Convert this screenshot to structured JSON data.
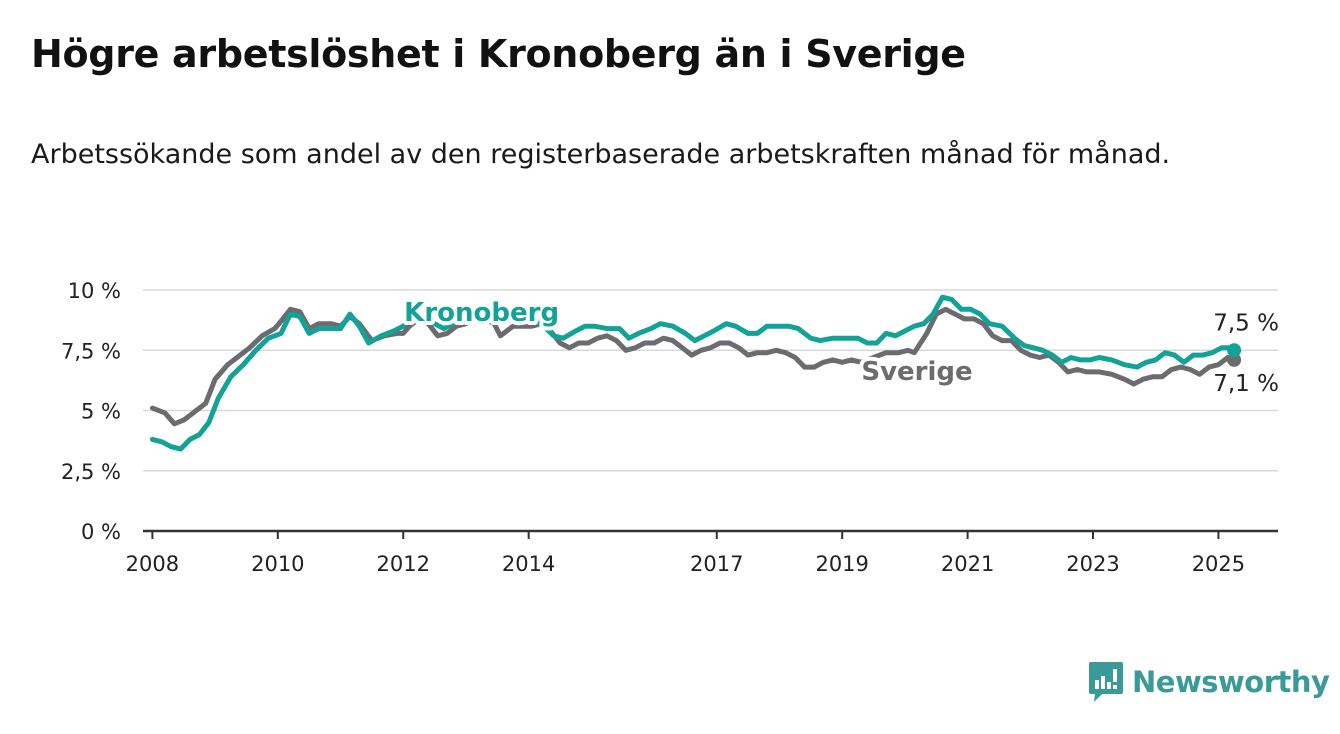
{
  "title": "Högre arbetslöshet i Kronoberg än i Sverige",
  "subtitle": "Arbetssökande som andel av den registerbaserade arbetskraften månad för månad.",
  "brand": {
    "name": "Newsworthy",
    "color": "#3a9a9a",
    "icon": "bar-chart-icon"
  },
  "chart_data": {
    "type": "line",
    "ylim": [
      0,
      10
    ],
    "yticks": [
      0,
      2.5,
      5,
      7.5,
      10
    ],
    "ytick_labels": [
      "0 %",
      "2,5 %",
      "5 %",
      "7,5 %",
      "10 %"
    ],
    "xlim": [
      2007.85,
      2025.95
    ],
    "xticks": [
      2008,
      2010,
      2012,
      2014,
      2017,
      2019,
      2021,
      2023,
      2025
    ],
    "xtick_labels": [
      "2008",
      "2010",
      "2012",
      "2014",
      "2017",
      "2019",
      "2021",
      "2023",
      "2025"
    ],
    "grid": true,
    "series": [
      {
        "name": "Sverige",
        "color": "#6b6b70",
        "end_label": "7,1 %",
        "points": [
          [
            2008.0,
            5.1
          ],
          [
            2008.2,
            4.9
          ],
          [
            2008.35,
            4.45
          ],
          [
            2008.5,
            4.6
          ],
          [
            2008.7,
            5.0
          ],
          [
            2008.85,
            5.3
          ],
          [
            2009.0,
            6.3
          ],
          [
            2009.2,
            6.9
          ],
          [
            2009.35,
            7.2
          ],
          [
            2009.55,
            7.6
          ],
          [
            2009.75,
            8.1
          ],
          [
            2009.95,
            8.4
          ],
          [
            2010.05,
            8.7
          ],
          [
            2010.2,
            9.2
          ],
          [
            2010.35,
            9.1
          ],
          [
            2010.5,
            8.4
          ],
          [
            2010.65,
            8.6
          ],
          [
            2010.85,
            8.6
          ],
          [
            2011.0,
            8.5
          ],
          [
            2011.15,
            8.9
          ],
          [
            2011.3,
            8.6
          ],
          [
            2011.5,
            7.9
          ],
          [
            2011.7,
            8.1
          ],
          [
            2011.9,
            8.2
          ],
          [
            2012.0,
            8.2
          ],
          [
            2012.1,
            8.5
          ],
          [
            2012.25,
            8.8
          ],
          [
            2012.4,
            8.6
          ],
          [
            2012.55,
            8.1
          ],
          [
            2012.7,
            8.2
          ],
          [
            2012.85,
            8.5
          ],
          [
            2013.0,
            8.6
          ],
          [
            2013.15,
            8.8
          ],
          [
            2013.3,
            8.8
          ],
          [
            2013.45,
            8.6
          ],
          [
            2013.55,
            8.1
          ],
          [
            2013.75,
            8.5
          ],
          [
            2013.95,
            8.5
          ],
          [
            2014.05,
            8.5
          ],
          [
            2014.2,
            8.6
          ],
          [
            2014.35,
            8.3
          ],
          [
            2014.5,
            7.8
          ],
          [
            2014.65,
            7.6
          ],
          [
            2014.8,
            7.8
          ],
          [
            2014.95,
            7.8
          ],
          [
            2015.1,
            8.0
          ],
          [
            2015.25,
            8.1
          ],
          [
            2015.4,
            7.9
          ],
          [
            2015.55,
            7.5
          ],
          [
            2015.7,
            7.6
          ],
          [
            2015.85,
            7.8
          ],
          [
            2016.0,
            7.8
          ],
          [
            2016.15,
            8.0
          ],
          [
            2016.3,
            7.9
          ],
          [
            2016.45,
            7.6
          ],
          [
            2016.6,
            7.3
          ],
          [
            2016.75,
            7.5
          ],
          [
            2016.9,
            7.6
          ],
          [
            2017.05,
            7.8
          ],
          [
            2017.2,
            7.8
          ],
          [
            2017.35,
            7.6
          ],
          [
            2017.5,
            7.3
          ],
          [
            2017.65,
            7.4
          ],
          [
            2017.8,
            7.4
          ],
          [
            2017.95,
            7.5
          ],
          [
            2018.1,
            7.4
          ],
          [
            2018.25,
            7.2
          ],
          [
            2018.4,
            6.8
          ],
          [
            2018.55,
            6.8
          ],
          [
            2018.7,
            7.0
          ],
          [
            2018.85,
            7.1
          ],
          [
            2019.0,
            7.0
          ],
          [
            2019.15,
            7.1
          ],
          [
            2019.3,
            7.0
          ],
          [
            2019.5,
            7.2
          ],
          [
            2019.7,
            7.4
          ],
          [
            2019.9,
            7.4
          ],
          [
            2020.05,
            7.5
          ],
          [
            2020.15,
            7.4
          ],
          [
            2020.35,
            8.2
          ],
          [
            2020.5,
            9.0
          ],
          [
            2020.65,
            9.2
          ],
          [
            2020.8,
            9.0
          ],
          [
            2020.95,
            8.8
          ],
          [
            2021.1,
            8.8
          ],
          [
            2021.25,
            8.6
          ],
          [
            2021.4,
            8.1
          ],
          [
            2021.55,
            7.9
          ],
          [
            2021.7,
            7.9
          ],
          [
            2021.85,
            7.5
          ],
          [
            2022.0,
            7.3
          ],
          [
            2022.15,
            7.2
          ],
          [
            2022.3,
            7.3
          ],
          [
            2022.45,
            7.0
          ],
          [
            2022.6,
            6.6
          ],
          [
            2022.75,
            6.7
          ],
          [
            2022.9,
            6.6
          ],
          [
            2023.1,
            6.6
          ],
          [
            2023.3,
            6.5
          ],
          [
            2023.5,
            6.3
          ],
          [
            2023.65,
            6.1
          ],
          [
            2023.8,
            6.3
          ],
          [
            2023.95,
            6.4
          ],
          [
            2024.1,
            6.4
          ],
          [
            2024.25,
            6.7
          ],
          [
            2024.4,
            6.8
          ],
          [
            2024.55,
            6.7
          ],
          [
            2024.7,
            6.5
          ],
          [
            2024.85,
            6.8
          ],
          [
            2025.0,
            6.9
          ],
          [
            2025.15,
            7.2
          ],
          [
            2025.25,
            7.1
          ]
        ]
      },
      {
        "name": "Kronoberg",
        "color": "#13a297",
        "end_label": "7,5 %",
        "points": [
          [
            2008.0,
            3.8
          ],
          [
            2008.15,
            3.7
          ],
          [
            2008.3,
            3.5
          ],
          [
            2008.45,
            3.4
          ],
          [
            2008.6,
            3.8
          ],
          [
            2008.75,
            4.0
          ],
          [
            2008.9,
            4.5
          ],
          [
            2009.05,
            5.5
          ],
          [
            2009.25,
            6.4
          ],
          [
            2009.45,
            6.9
          ],
          [
            2009.65,
            7.5
          ],
          [
            2009.85,
            8.0
          ],
          [
            2010.05,
            8.2
          ],
          [
            2010.2,
            9.0
          ],
          [
            2010.35,
            8.9
          ],
          [
            2010.5,
            8.2
          ],
          [
            2010.65,
            8.4
          ],
          [
            2010.85,
            8.4
          ],
          [
            2011.0,
            8.4
          ],
          [
            2011.15,
            9.0
          ],
          [
            2011.3,
            8.5
          ],
          [
            2011.45,
            7.8
          ],
          [
            2011.65,
            8.1
          ],
          [
            2011.85,
            8.3
          ],
          [
            2012.0,
            8.5
          ],
          [
            2012.15,
            8.9
          ],
          [
            2012.35,
            8.8
          ],
          [
            2012.5,
            8.6
          ],
          [
            2012.65,
            8.4
          ],
          [
            2012.85,
            8.7
          ],
          [
            2013.05,
            8.9
          ],
          [
            2013.25,
            8.8
          ],
          [
            2013.45,
            8.7
          ],
          [
            2013.6,
            8.7
          ],
          [
            2013.8,
            8.8
          ],
          [
            2014.0,
            8.7
          ],
          [
            2014.2,
            8.6
          ],
          [
            2014.4,
            8.1
          ],
          [
            2014.55,
            8.0
          ],
          [
            2014.75,
            8.3
          ],
          [
            2014.9,
            8.5
          ],
          [
            2015.05,
            8.5
          ],
          [
            2015.25,
            8.4
          ],
          [
            2015.45,
            8.4
          ],
          [
            2015.6,
            8.0
          ],
          [
            2015.75,
            8.2
          ],
          [
            2015.95,
            8.4
          ],
          [
            2016.1,
            8.6
          ],
          [
            2016.3,
            8.5
          ],
          [
            2016.5,
            8.2
          ],
          [
            2016.65,
            7.9
          ],
          [
            2016.8,
            8.1
          ],
          [
            2016.95,
            8.3
          ],
          [
            2017.15,
            8.6
          ],
          [
            2017.3,
            8.5
          ],
          [
            2017.5,
            8.2
          ],
          [
            2017.65,
            8.2
          ],
          [
            2017.8,
            8.5
          ],
          [
            2017.95,
            8.5
          ],
          [
            2018.15,
            8.5
          ],
          [
            2018.3,
            8.4
          ],
          [
            2018.5,
            8.0
          ],
          [
            2018.65,
            7.9
          ],
          [
            2018.85,
            8.0
          ],
          [
            2019.05,
            8.0
          ],
          [
            2019.25,
            8.0
          ],
          [
            2019.4,
            7.8
          ],
          [
            2019.55,
            7.8
          ],
          [
            2019.7,
            8.2
          ],
          [
            2019.85,
            8.1
          ],
          [
            2020.0,
            8.3
          ],
          [
            2020.15,
            8.5
          ],
          [
            2020.3,
            8.6
          ],
          [
            2020.45,
            9.0
          ],
          [
            2020.6,
            9.7
          ],
          [
            2020.75,
            9.6
          ],
          [
            2020.9,
            9.2
          ],
          [
            2021.05,
            9.2
          ],
          [
            2021.2,
            9.0
          ],
          [
            2021.35,
            8.6
          ],
          [
            2021.55,
            8.5
          ],
          [
            2021.75,
            8.0
          ],
          [
            2021.9,
            7.7
          ],
          [
            2022.05,
            7.6
          ],
          [
            2022.2,
            7.5
          ],
          [
            2022.35,
            7.3
          ],
          [
            2022.5,
            7.0
          ],
          [
            2022.65,
            7.2
          ],
          [
            2022.8,
            7.1
          ],
          [
            2022.95,
            7.1
          ],
          [
            2023.1,
            7.2
          ],
          [
            2023.3,
            7.1
          ],
          [
            2023.5,
            6.9
          ],
          [
            2023.7,
            6.8
          ],
          [
            2023.85,
            7.0
          ],
          [
            2024.0,
            7.1
          ],
          [
            2024.15,
            7.4
          ],
          [
            2024.3,
            7.3
          ],
          [
            2024.45,
            7.0
          ],
          [
            2024.6,
            7.3
          ],
          [
            2024.75,
            7.3
          ],
          [
            2024.9,
            7.4
          ],
          [
            2025.05,
            7.6
          ],
          [
            2025.2,
            7.6
          ],
          [
            2025.25,
            7.5
          ]
        ]
      }
    ]
  }
}
